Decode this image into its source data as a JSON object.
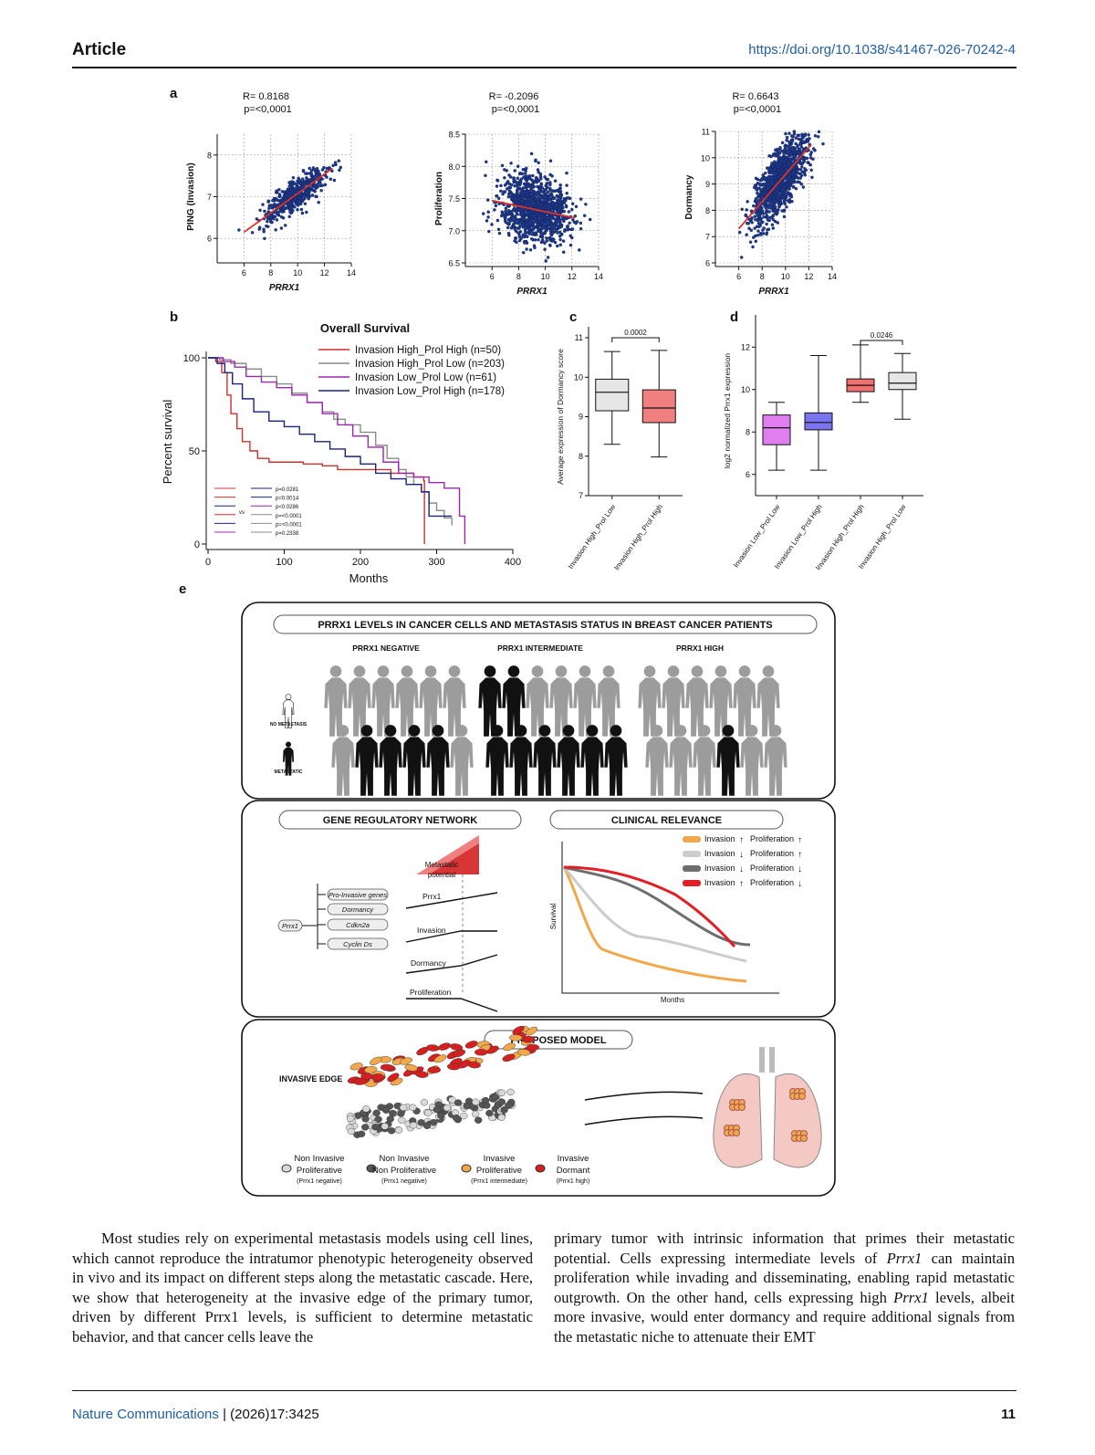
{
  "header": {
    "journal": "Article",
    "doi": "https://doi.org/10.1038/s41467-026-70242-4"
  },
  "panel_labels": {
    "a": "a",
    "b": "b",
    "c": "c",
    "d": "d",
    "e": "e"
  },
  "chart_data": [
    {
      "type": "scatter",
      "panel": "a1",
      "stats": [
        "R= 0.8168",
        "p=<0,0001"
      ],
      "xlabel": "PRRX1",
      "ylabel": "PING (Invasion)",
      "xlim": [
        4,
        14
      ],
      "ylim": [
        5.5,
        8.5
      ],
      "xticks": [
        "6",
        "8",
        "10",
        "12",
        "14"
      ],
      "yticks": [
        "6",
        "7",
        "8"
      ],
      "fit": [
        [
          6,
          6.15
        ],
        [
          12.6,
          7.68
        ]
      ],
      "cloud": {
        "x_mean": 9.8,
        "x_sd": 1.2,
        "slope": 0.23,
        "intercept": 4.78,
        "resid_sd": 0.18,
        "n": 500
      }
    },
    {
      "type": "scatter",
      "panel": "a2",
      "stats": [
        "R= -0.2096",
        "p=<0,0001"
      ],
      "xlabel": "PRRX1",
      "ylabel": "Proliferation",
      "xlim": [
        4,
        14
      ],
      "ylim": [
        6.5,
        8.5
      ],
      "xticks": [
        "6",
        "8",
        "10",
        "12",
        "14"
      ],
      "yticks": [
        "6.5",
        "7.0",
        "7.5",
        "8.0",
        "8.5"
      ],
      "fit": [
        [
          6,
          7.47
        ],
        [
          12.2,
          7.2
        ]
      ],
      "cloud": {
        "x_mean": 9.2,
        "x_sd": 1.3,
        "slope": -0.04,
        "intercept": 7.72,
        "resid_sd": 0.25,
        "n": 1100
      }
    },
    {
      "type": "scatter",
      "panel": "a3",
      "stats": [
        "R= 0.6643",
        "p=<0,0001"
      ],
      "xlabel": "PRRX1",
      "ylabel": "Dormancy",
      "xlim": [
        4,
        14
      ],
      "ylim": [
        6,
        11
      ],
      "xticks": [
        "6",
        "8",
        "10",
        "12",
        "14"
      ],
      "yticks": [
        "6",
        "7",
        "8",
        "9",
        "10",
        "11"
      ],
      "fit": [
        [
          6,
          7.3
        ],
        [
          12.2,
          10.5
        ]
      ],
      "cloud": {
        "x_mean": 9.6,
        "x_sd": 1.2,
        "slope": 0.52,
        "intercept": 4.2,
        "resid_sd": 0.55,
        "n": 1100
      }
    },
    {
      "type": "line",
      "panel": "b",
      "title": "Overall Survival",
      "xlabel": "Months",
      "ylabel": "Percent survival",
      "xlim": [
        0,
        400
      ],
      "ylim": [
        0,
        100
      ],
      "xticks": [
        "0",
        "100",
        "200",
        "300",
        "400"
      ],
      "yticks": [
        "0",
        "50",
        "100"
      ],
      "series": [
        {
          "name": "Invasion High_Prol High (n=50)",
          "color": "#d32f2f",
          "points": [
            [
              0,
              100
            ],
            [
              10,
              98
            ],
            [
              18,
              92
            ],
            [
              25,
              80
            ],
            [
              30,
              70
            ],
            [
              38,
              62
            ],
            [
              45,
              55
            ],
            [
              55,
              50
            ],
            [
              65,
              46
            ],
            [
              80,
              44
            ],
            [
              100,
              44
            ],
            [
              125,
              43
            ],
            [
              150,
              42
            ],
            [
              170,
              40
            ],
            [
              200,
              40
            ],
            [
              240,
              38
            ],
            [
              270,
              36
            ],
            [
              283,
              34
            ],
            [
              284,
              0
            ]
          ]
        },
        {
          "name": "Invasion High_Prol Low (n=203)",
          "color": "#8c8c8c",
          "points": [
            [
              0,
              100
            ],
            [
              15,
              99
            ],
            [
              30,
              97
            ],
            [
              50,
              94
            ],
            [
              70,
              90
            ],
            [
              90,
              86
            ],
            [
              110,
              81
            ],
            [
              130,
              76
            ],
            [
              150,
              71
            ],
            [
              165,
              67
            ],
            [
              180,
              64
            ],
            [
              200,
              60
            ],
            [
              220,
              53
            ],
            [
              235,
              46
            ],
            [
              250,
              40
            ],
            [
              260,
              36
            ],
            [
              270,
              32
            ],
            [
              280,
              28
            ],
            [
              290,
              22
            ],
            [
              300,
              18
            ],
            [
              310,
              14
            ],
            [
              320,
              10
            ]
          ]
        },
        {
          "name": "Invasion Low_Prol Low (n=61)",
          "color": "#9c27b0",
          "points": [
            [
              0,
              100
            ],
            [
              20,
              98
            ],
            [
              35,
              95
            ],
            [
              50,
              90
            ],
            [
              70,
              87
            ],
            [
              90,
              84
            ],
            [
              110,
              80
            ],
            [
              130,
              76
            ],
            [
              150,
              70
            ],
            [
              170,
              64
            ],
            [
              190,
              58
            ],
            [
              210,
              52
            ],
            [
              230,
              44
            ],
            [
              250,
              38
            ],
            [
              270,
              36
            ],
            [
              290,
              33
            ],
            [
              310,
              30
            ],
            [
              330,
              15
            ],
            [
              337,
              0
            ]
          ]
        },
        {
          "name": "Invasion Low_Prol High (n=178)",
          "color": "#1a237e",
          "points": [
            [
              0,
              100
            ],
            [
              12,
              97
            ],
            [
              22,
              92
            ],
            [
              32,
              86
            ],
            [
              45,
              78
            ],
            [
              60,
              71
            ],
            [
              80,
              66
            ],
            [
              100,
              63
            ],
            [
              120,
              59
            ],
            [
              140,
              55
            ],
            [
              160,
              51
            ],
            [
              180,
              47
            ],
            [
              200,
              43
            ],
            [
              220,
              38
            ],
            [
              240,
              35
            ],
            [
              260,
              32
            ],
            [
              280,
              28
            ],
            [
              290,
              15
            ],
            [
              300,
              15
            ],
            [
              320,
              15
            ]
          ]
        }
      ],
      "pvalues": [
        "p=0.0281",
        "p=0.0014",
        "p<0.0286",
        "p=<0.0001",
        "p=<0.0001",
        "p=0.2338"
      ],
      "vs": "vs",
      "compare_colors": [
        [
          "#d32f2f",
          "#1a237e"
        ],
        [
          "#d32f2f",
          "#1a237e"
        ],
        [
          "#1a237e",
          "#9c27b0"
        ],
        [
          "#d32f2f",
          "#8c8c8c"
        ],
        [
          "#1a237e",
          "#8c8c8c"
        ],
        [
          "#9c27b0",
          "#8c8c8c"
        ]
      ]
    },
    {
      "type": "box",
      "panel": "c",
      "ylabel": "Average expression of Dormancy score",
      "ylim": [
        7,
        11
      ],
      "yticks": [
        "7",
        "8",
        "9",
        "10",
        "11"
      ],
      "categories": [
        "Invasion High_Prol Low",
        "Invasion High_Prol High"
      ],
      "boxes": [
        {
          "min": 8.3,
          "q1": 9.15,
          "median": 9.62,
          "q3": 9.95,
          "max": 10.65,
          "color": "#e6e6e6"
        },
        {
          "min": 7.98,
          "q1": 8.85,
          "median": 9.22,
          "q3": 9.68,
          "max": 10.68,
          "color": "#f07f7f"
        }
      ],
      "annotation": "0.0002"
    },
    {
      "type": "box",
      "panel": "d",
      "ylabel": "log2 normalized Prrx1 expression",
      "ylim": [
        5,
        13
      ],
      "yticks": [
        "6",
        "8",
        "10",
        "12"
      ],
      "categories": [
        "Invasion Low_Prol Low",
        "Invasion Low_Prol High",
        "Invasion High_Prol High",
        "Invasion High_Prol Low"
      ],
      "boxes": [
        {
          "min": 6.2,
          "q1": 7.4,
          "median": 8.2,
          "q3": 8.8,
          "max": 9.4,
          "color": "#e07ef0"
        },
        {
          "min": 6.2,
          "q1": 8.1,
          "median": 8.45,
          "q3": 8.9,
          "max": 11.6,
          "color": "#7b74f0"
        },
        {
          "min": 9.4,
          "q1": 9.9,
          "median": 10.2,
          "q3": 10.5,
          "max": 12.1,
          "color": "#f07070"
        },
        {
          "min": 8.6,
          "q1": 10.0,
          "median": 10.3,
          "q3": 10.8,
          "max": 11.7,
          "color": "#e6e6e6"
        }
      ],
      "annotation": "0.0246"
    }
  ],
  "schematic": {
    "top_title": "PRRX1 LEVELS IN CANCER CELLS AND METASTASIS STATUS IN BREAST CANCER PATIENTS",
    "groups": [
      {
        "label": "PRRX1 NEGATIVE",
        "dark": [
          0,
          0,
          0,
          0,
          0,
          0,
          0,
          1,
          1,
          1,
          1,
          0
        ]
      },
      {
        "label": "PRRX1 INTERMEDIATE",
        "dark": [
          1,
          1,
          0,
          0,
          0,
          0,
          1,
          1,
          1,
          1,
          1,
          1
        ]
      },
      {
        "label": "PRRX1 HIGH",
        "dark": [
          0,
          0,
          0,
          0,
          0,
          0,
          0,
          0,
          0,
          1,
          0,
          0
        ]
      }
    ],
    "legend": {
      "no_met": "NO METASTASIS",
      "met": "METASTATIC"
    },
    "grn_title": "GENE REGULATORY NETWORK",
    "grn": {
      "root": "Prrx1",
      "targets": [
        "Pro-Invasive genes",
        "Dormancy",
        "Cdkn2a",
        "Cyclin Ds"
      ],
      "triangle": "Metastatic potential",
      "rows": [
        "Prrx1",
        "Invasion",
        "Dormancy",
        "Proliferation"
      ]
    },
    "clin_title": "CLINICAL RELEVANCE",
    "clin": {
      "ylabel": "Survival",
      "xlabel": "Months",
      "legend": [
        {
          "inv": "Invasion",
          "inv_dir": "↑",
          "prol": "Proliferation",
          "prol_dir": "↑",
          "color": "#f0a84a"
        },
        {
          "inv": "Invasion",
          "inv_dir": "↓",
          "prol": "Proliferation",
          "prol_dir": "↑",
          "color": "#cccccc"
        },
        {
          "inv": "Invasion",
          "inv_dir": "↓",
          "prol": "Proliferation",
          "prol_dir": "↓",
          "color": "#6e6e6e"
        },
        {
          "inv": "Invasion",
          "inv_dir": "↑",
          "prol": "Proliferation",
          "prol_dir": "↓",
          "color": "#e31e24"
        }
      ]
    },
    "model_title": "PROPOSED MODEL",
    "invasive_edge": "INVASIVE EDGE",
    "cells": [
      {
        "l1": "Non Invasive",
        "l2": "Proliferative",
        "l3": "(Prrx1 negative)",
        "color": "#d9d9d9"
      },
      {
        "l1": "Non Invasive",
        "l2": "Non Proliferative",
        "l3": "(Prrx1 negative)",
        "color": "#555555"
      },
      {
        "l1": "Invasive",
        "l2": "Proliferative",
        "l3": "(Prrx1 intermediate)",
        "color": "#f0a84a"
      },
      {
        "l1": "Invasive",
        "l2": "Dormant",
        "l3": "(Prrx1 high)",
        "color": "#d42020"
      }
    ]
  },
  "body": {
    "left": "Most studies rely on experimental metastasis models using cell lines, which cannot reproduce the intratumor phenotypic heterogeneity observed in vivo and its impact on different steps along the metastatic cascade. Here, we show that heterogeneity at the invasive edge of the primary tumor, driven by different Prrx1 levels, is sufficient to determine metastatic behavior, and that cancer cells leave the",
    "right_1": "primary tumor with intrinsic information that primes their metastatic potential. Cells expressing intermediate levels of ",
    "right_gene1": "Prrx1",
    "right_2": " can maintain proliferation while invading and disseminating, enabling rapid metastatic outgrowth. On the other hand, cells expressing high ",
    "right_gene2": "Prrx1",
    "right_3": " levels, albeit more invasive, would enter dormancy and require additional signals from the metastatic niche to attenuate their EMT"
  },
  "footer": {
    "journal": "Nature Communications",
    "issue": " | (2026)17:3425",
    "page": "11"
  }
}
